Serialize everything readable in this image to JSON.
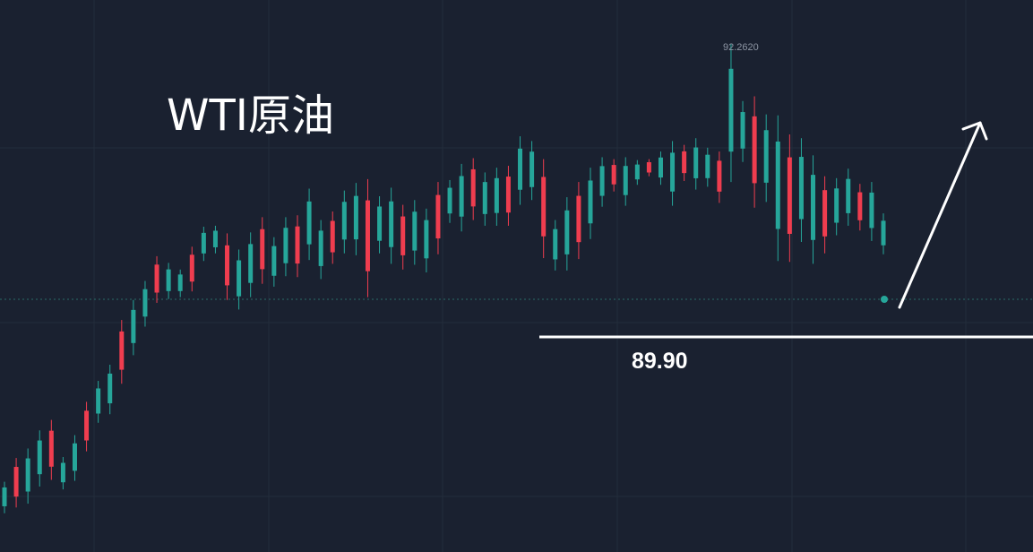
{
  "chart_data": {
    "type": "candlestick",
    "title": "WTI原油",
    "colors": {
      "background": "#1a2130",
      "grid": "#232d3b",
      "up": "#26a69a",
      "down": "#ef3d4f",
      "annotation": "#ffffff",
      "label": "#8d95a3"
    },
    "grid": true,
    "candle_series_hl": {
      "highs": [
        87.66,
        87.91,
        88.01,
        88.2,
        88.31,
        87.92,
        88.15,
        88.5,
        88.72,
        88.89,
        89.36,
        89.57,
        89.77,
        90.03,
        89.96,
        89.89,
        90.13,
        90.34,
        90.35,
        90.27,
        90.1,
        90.28,
        90.44,
        90.23,
        90.44,
        90.46,
        90.74,
        90.41,
        90.5,
        90.72,
        90.8,
        90.84,
        90.66,
        90.75,
        90.57,
        90.62,
        90.53,
        90.81,
        90.83,
        91.0,
        91.06,
        90.91,
        90.96,
        90.98,
        91.29,
        91.24,
        91.05,
        90.41,
        90.65,
        90.81,
        90.96,
        91.07,
        91.05,
        91.07,
        91.04,
        91.05,
        91.13,
        91.24,
        91.2,
        91.27,
        91.17,
        91.13,
        92.26,
        91.66,
        91.71,
        91.52,
        91.51,
        91.31,
        91.27,
        91.09,
        90.87,
        90.85,
        90.95,
        90.79,
        90.81,
        90.48
      ],
      "lows": [
        87.33,
        87.39,
        87.43,
        87.61,
        87.68,
        87.58,
        87.67,
        87.98,
        88.28,
        88.37,
        88.69,
        88.99,
        89.29,
        89.54,
        89.58,
        89.6,
        89.66,
        89.98,
        90.06,
        89.57,
        89.47,
        89.6,
        89.74,
        89.71,
        89.82,
        89.81,
        89.99,
        89.79,
        89.95,
        90.06,
        90.04,
        89.6,
        90.06,
        89.95,
        89.89,
        89.94,
        89.86,
        90.05,
        90.38,
        90.29,
        90.41,
        90.35,
        90.35,
        90.35,
        90.57,
        90.62,
        90.01,
        89.88,
        89.88,
        90.0,
        90.21,
        90.55,
        90.71,
        90.56,
        90.78,
        90.87,
        90.78,
        90.56,
        90.82,
        90.73,
        90.76,
        90.59,
        90.81,
        91.02,
        90.54,
        90.6,
        89.98,
        89.97,
        90.18,
        89.95,
        90.06,
        90.25,
        90.35,
        90.3,
        90.19,
        90.05
      ]
    },
    "annotations": {
      "high_label": "92.2620",
      "support_label": "89.90",
      "support_level": 89.9
    },
    "ylim": [
      87.28,
      92.27
    ]
  }
}
